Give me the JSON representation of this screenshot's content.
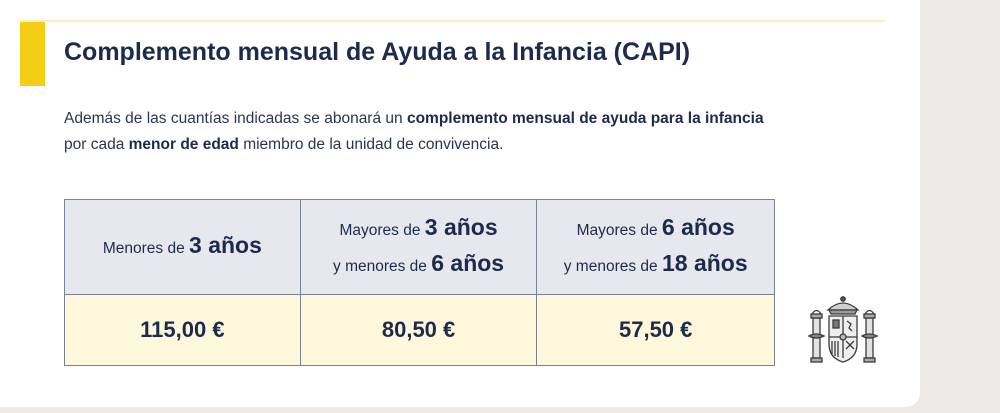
{
  "title": "Complemento mensual de Ayuda a la Infancia (CAPI)",
  "intro": {
    "p1": "Además de las cuantías indicadas se abonará un ",
    "b1": "complemento mensual de ayuda para la infancia",
    "p2": "por cada ",
    "b2": "menor de edad",
    "p3": " miembro de la unidad de convivencia."
  },
  "table": {
    "headers": [
      {
        "pre": "Menores de ",
        "num": "3 años"
      },
      {
        "pre": "Mayores de ",
        "num": "3 años",
        "pre2": "y menores de ",
        "num2": "6 años"
      },
      {
        "pre": "Mayores de ",
        "num": "6 años",
        "pre2": "y menores de ",
        "num2": "18 años"
      }
    ],
    "values": [
      "115,00 €",
      "80,50 €",
      "57,50 €"
    ]
  },
  "colors": {
    "accent": "#f4cd14",
    "header_bg": "#e6e8ee",
    "value_bg": "#fdf8dc",
    "text": "#1d2a4c"
  },
  "emblem": {
    "icon": "coat-of-arms-of-spain-icon"
  }
}
